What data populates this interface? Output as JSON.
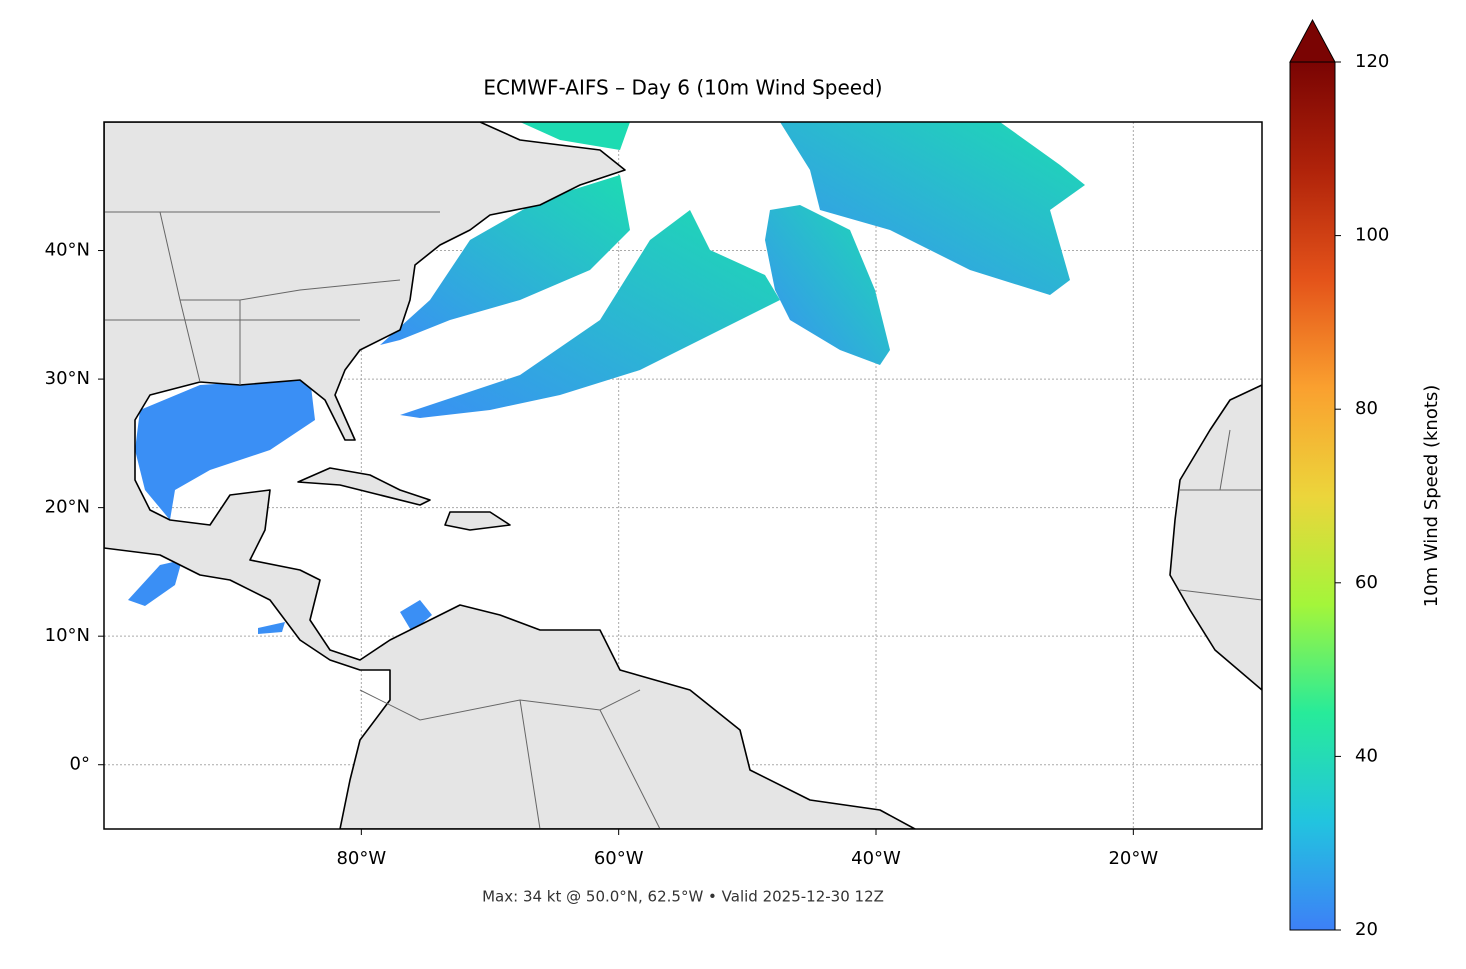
{
  "chart_data": {
    "type": "map",
    "title": "ECMWF-AIFS – Day 6 (10m Wind Speed)",
    "subtitle": "Max: 34 kt @ 50.0°N, 62.5°W • Valid 2025-12-30 12Z",
    "xlim": [
      -100,
      -10
    ],
    "ylim": [
      -5,
      50
    ],
    "xticks": [
      {
        "value": -80,
        "label": "80°W"
      },
      {
        "value": -60,
        "label": "60°W"
      },
      {
        "value": -40,
        "label": "40°W"
      },
      {
        "value": -20,
        "label": "20°W"
      }
    ],
    "yticks": [
      {
        "value": 0,
        "label": "0°"
      },
      {
        "value": 10,
        "label": "10°N"
      },
      {
        "value": 20,
        "label": "20°N"
      },
      {
        "value": 30,
        "label": "30°N"
      },
      {
        "value": 40,
        "label": "40°N"
      }
    ],
    "grid": true,
    "colorbar": {
      "label": "10m Wind Speed (knots)",
      "lim": [
        20,
        120
      ],
      "ticks": [
        20,
        40,
        60,
        80,
        100,
        120
      ],
      "colormap": [
        "#3d80f7",
        "#22c4df",
        "#27eb9a",
        "#a4f53a",
        "#ecd53b",
        "#faa02f",
        "#e4531a",
        "#b0230a",
        "#7a0403"
      ]
    }
  }
}
